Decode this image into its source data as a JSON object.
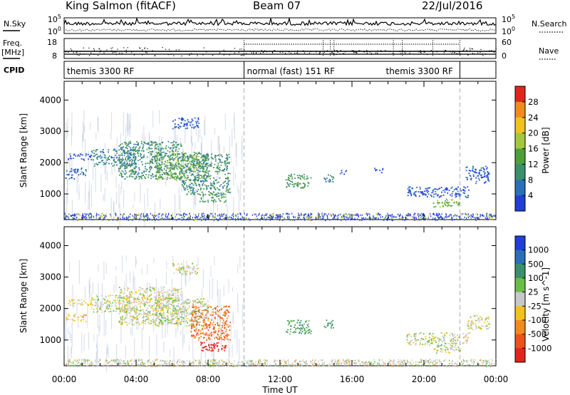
{
  "header": {
    "station": "King Salmon (fitACF)",
    "beam": "Beam 07",
    "date": "22/Jul/2016"
  },
  "params_panel": {
    "left_labels": {
      "nsky": "N.Sky",
      "freq": "Freq.",
      "freq_unit": "[MHz]",
      "cpid": "CPID"
    },
    "right_labels": {
      "nsearch": "N.Search",
      "nave": "Nave"
    },
    "noise_ticks_left": [
      "10^5",
      "10^0"
    ],
    "noise_ticks_right": [
      "10^5",
      "10^0"
    ],
    "freq_ticks": [
      "18",
      "8"
    ],
    "nave_ticks": [
      "60",
      "0"
    ],
    "cpid_segments": [
      {
        "label": "themis 3300 RF",
        "start_hour": 0,
        "end_hour": 10
      },
      {
        "label": "normal (fast) 151 RF",
        "start_hour": 10,
        "end_hour": 22
      },
      {
        "label": "themis 3300 RF",
        "start_hour": 22,
        "end_hour": 24
      }
    ]
  },
  "chart_data": [
    {
      "type": "heatmap",
      "ylabel": "Slant Range [km]",
      "xlim_hours": [
        0,
        24
      ],
      "ylim": [
        180,
        4600
      ],
      "yticks": [
        1000,
        2000,
        3000,
        4000
      ],
      "colorbar": {
        "label": "Power [dB]",
        "range": [
          0,
          32
        ],
        "ticks": [
          "4",
          "8",
          "12",
          "16",
          "20",
          "24",
          "28"
        ]
      },
      "scatter_blobs": [
        {
          "hours": [
            0.1,
            1.2
          ],
          "range_km": [
            1600,
            1850
          ],
          "level": 6
        },
        {
          "hours": [
            0.0,
            1.0
          ],
          "range_km": [
            1500,
            1560
          ],
          "level": 8
        },
        {
          "hours": [
            0.2,
            1.5
          ],
          "range_km": [
            2100,
            2300
          ],
          "level": 6
        },
        {
          "hours": [
            1.5,
            4.0
          ],
          "range_km": [
            1900,
            2450
          ],
          "level": 10
        },
        {
          "hours": [
            3.0,
            6.5
          ],
          "range_km": [
            1500,
            2700
          ],
          "level": 12
        },
        {
          "hours": [
            5.0,
            8.0
          ],
          "range_km": [
            1450,
            2350
          ],
          "level": 16
        },
        {
          "hours": [
            6.5,
            9.2
          ],
          "range_km": [
            1000,
            2300
          ],
          "level": 12
        },
        {
          "hours": [
            7.5,
            9.0
          ],
          "range_km": [
            750,
            1000
          ],
          "level": 14
        },
        {
          "hours": [
            6.0,
            7.5
          ],
          "range_km": [
            3100,
            3450
          ],
          "level": 6
        },
        {
          "hours": [
            12.3,
            13.7
          ],
          "range_km": [
            1200,
            1650
          ],
          "level": 14
        },
        {
          "hours": [
            14.4,
            15.0
          ],
          "range_km": [
            1400,
            1650
          ],
          "level": 10
        },
        {
          "hours": [
            15.3,
            15.7
          ],
          "range_km": [
            1650,
            1780
          ],
          "level": 6
        },
        {
          "hours": [
            17.2,
            17.7
          ],
          "range_km": [
            1700,
            1850
          ],
          "level": 6
        },
        {
          "hours": [
            19.0,
            22.5
          ],
          "range_km": [
            900,
            1250
          ],
          "level": 6
        },
        {
          "hours": [
            20.5,
            22.0
          ],
          "range_km": [
            600,
            850
          ],
          "level": 18
        },
        {
          "hours": [
            22.3,
            23.6
          ],
          "range_km": [
            1350,
            1900
          ],
          "level": 6
        }
      ],
      "ground_scatter_level": 6
    },
    {
      "type": "heatmap",
      "ylabel": "Slant Range [km]",
      "xlabel": "Time UT",
      "xlim_hours": [
        0,
        24
      ],
      "ylim": [
        180,
        4600
      ],
      "yticks": [
        1000,
        2000,
        3000,
        4000
      ],
      "xticks": [
        "00:00",
        "04:00",
        "08:00",
        "12:00",
        "16:00",
        "20:00",
        "00:00"
      ],
      "colorbar": {
        "label": "Velocity [m s^-1]",
        "ticks": [
          "1000",
          "500",
          "100",
          "25",
          "-25",
          "-100",
          "-500",
          "-1000"
        ]
      },
      "scatter_blobs": [
        {
          "hours": [
            0.1,
            1.2
          ],
          "range_km": [
            1600,
            1850
          ],
          "velocity": -60
        },
        {
          "hours": [
            0.2,
            1.5
          ],
          "range_km": [
            2100,
            2300
          ],
          "velocity": -40
        },
        {
          "hours": [
            1.5,
            4.0
          ],
          "range_km": [
            1900,
            2450
          ],
          "velocity": 0
        },
        {
          "hours": [
            3.0,
            6.5
          ],
          "range_km": [
            1500,
            2700
          ],
          "velocity": -10
        },
        {
          "hours": [
            5.0,
            8.0
          ],
          "range_km": [
            1450,
            2350
          ],
          "velocity": 10
        },
        {
          "hours": [
            7.0,
            9.2
          ],
          "range_km": [
            1000,
            2100
          ],
          "velocity": -300
        },
        {
          "hours": [
            7.5,
            9.0
          ],
          "range_km": [
            650,
            950
          ],
          "velocity": -600
        },
        {
          "hours": [
            6.0,
            7.5
          ],
          "range_km": [
            3100,
            3450
          ],
          "velocity": 0
        },
        {
          "hours": [
            12.3,
            13.7
          ],
          "range_km": [
            1200,
            1650
          ],
          "velocity": 120
        },
        {
          "hours": [
            14.4,
            15.0
          ],
          "range_km": [
            1400,
            1650
          ],
          "velocity": 150
        },
        {
          "hours": [
            19.0,
            22.5
          ],
          "range_km": [
            850,
            1250
          ],
          "velocity": 0
        },
        {
          "hours": [
            20.5,
            22.0
          ],
          "range_km": [
            600,
            850
          ],
          "velocity": 0
        },
        {
          "hours": [
            22.3,
            23.6
          ],
          "range_km": [
            1350,
            1800
          ],
          "velocity": 0
        }
      ]
    }
  ],
  "colors": {
    "power_scale": [
      "#1f3fd8",
      "#2a6fb8",
      "#3b8f6b",
      "#4e9e3a",
      "#a3c93a",
      "#f2c21c",
      "#f58a1c",
      "#e3241c"
    ],
    "velocity_scale": [
      "#e3241c",
      "#f0501c",
      "#f58a1c",
      "#f2c21c",
      "#c8c8c8",
      "#6abe45",
      "#3b8f6b",
      "#2a6fb8",
      "#1f3fd8"
    ]
  }
}
